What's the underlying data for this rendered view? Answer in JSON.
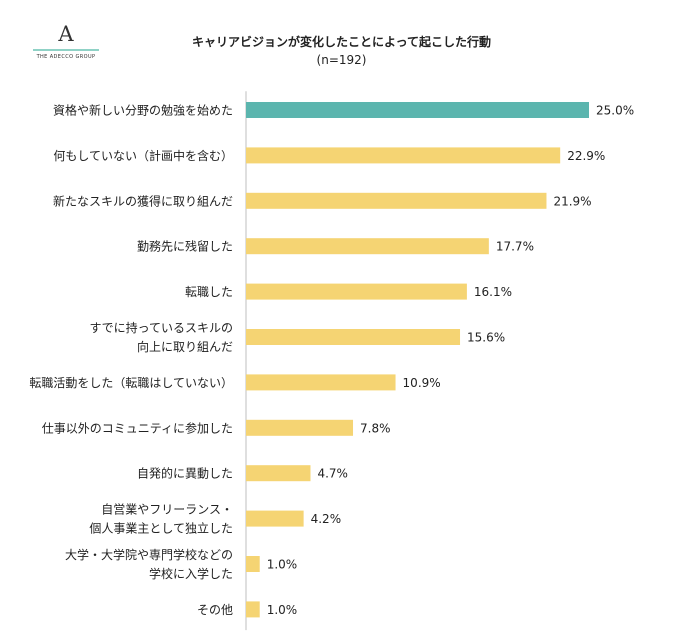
{
  "logo": {
    "mark": "A",
    "text": "THE ADECCO GROUP"
  },
  "chart_data": {
    "type": "bar",
    "orientation": "horizontal",
    "title": "キャリアビジョンが変化したことによって起こした行動",
    "subtitle": "(n=192)",
    "categories": [
      [
        "資格や新しい分野の勉強を始めた"
      ],
      [
        "何もしていない（計画中を含む）"
      ],
      [
        "新たなスキルの獲得に取り組んだ"
      ],
      [
        "勤務先に残留した"
      ],
      [
        "転職した"
      ],
      [
        "すでに持っているスキルの",
        "向上に取り組んだ"
      ],
      [
        "転職活動をした（転職はしていない）"
      ],
      [
        "仕事以外のコミュニティに参加した"
      ],
      [
        "自発的に異動した"
      ],
      [
        "自営業やフリーランス・",
        "個人事業主として独立した"
      ],
      [
        "大学・大学院や専門学校などの",
        "学校に入学した"
      ],
      [
        "その他"
      ]
    ],
    "values": [
      25.0,
      22.9,
      21.9,
      17.7,
      16.1,
      15.6,
      10.9,
      7.8,
      4.7,
      4.2,
      1.0,
      1.0
    ],
    "value_labels": [
      "25.0%",
      "22.9%",
      "21.9%",
      "17.7%",
      "16.1%",
      "15.6%",
      "10.9%",
      "7.8%",
      "4.7%",
      "4.2%",
      "1.0%",
      "1.0%"
    ],
    "xlim": [
      0,
      25
    ],
    "highlight_index": 0,
    "colors": {
      "highlight": "#5bb5ae",
      "default": "#f5d473",
      "axis": "#bfbfbf"
    }
  }
}
